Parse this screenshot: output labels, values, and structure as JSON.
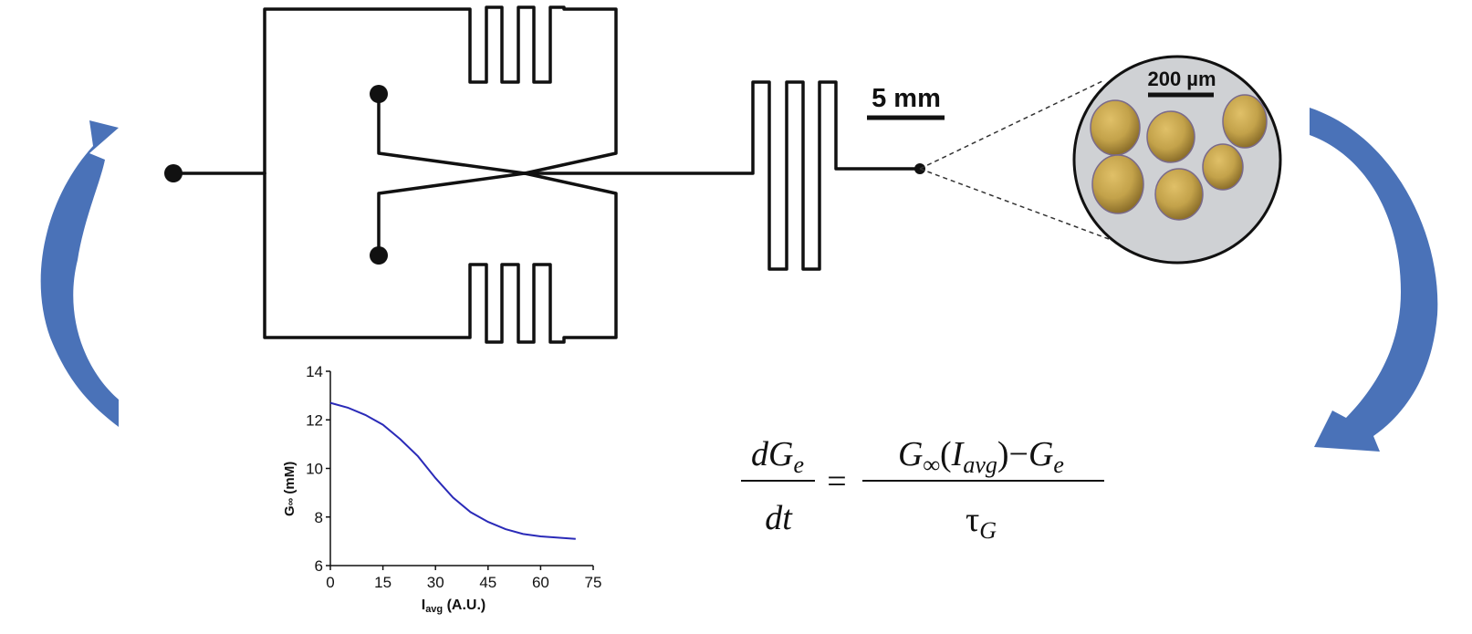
{
  "scale_bar": {
    "label": "5 mm"
  },
  "inset": {
    "scale_label": "200 µm",
    "colors": {
      "islet": "#c3a24a",
      "background": "#cfd1d4"
    }
  },
  "colors": {
    "arrow": "#4a72b8",
    "channel": "#111111",
    "curve": "#2a2ab8"
  },
  "equation": {
    "lhs_num": "dG",
    "lhs_num_sub": "e",
    "lhs_den": "dt",
    "equals": "=",
    "rhs_num_a": "G",
    "rhs_num_a_sub": "∞",
    "rhs_num_paren_open": "(",
    "rhs_num_i": "I",
    "rhs_num_i_sub": "avg",
    "rhs_num_paren_close": ")",
    "rhs_num_minus": "−",
    "rhs_num_b": "G",
    "rhs_num_b_sub": "e",
    "rhs_den": "τ",
    "rhs_den_sub": "G"
  },
  "chart_data": {
    "type": "line",
    "xlabel": "I",
    "xlabel_sub": "avg",
    "xlabel_unit": " (A.U.)",
    "ylabel": "G",
    "ylabel_sub": "∞",
    "ylabel_unit": " (mM)",
    "xlim": [
      0,
      75
    ],
    "ylim": [
      6,
      14
    ],
    "xticks": [
      0,
      15,
      30,
      45,
      60,
      75
    ],
    "yticks": [
      6,
      8,
      10,
      12,
      14
    ],
    "grid": false,
    "series": [
      {
        "x": [
          0,
          5,
          10,
          15,
          20,
          25,
          30,
          35,
          40,
          45,
          50,
          55,
          60,
          65,
          70
        ],
        "y": [
          12.7,
          12.5,
          12.2,
          11.8,
          11.2,
          10.5,
          9.6,
          8.8,
          8.2,
          7.8,
          7.5,
          7.3,
          7.2,
          7.15,
          7.1
        ]
      }
    ]
  }
}
